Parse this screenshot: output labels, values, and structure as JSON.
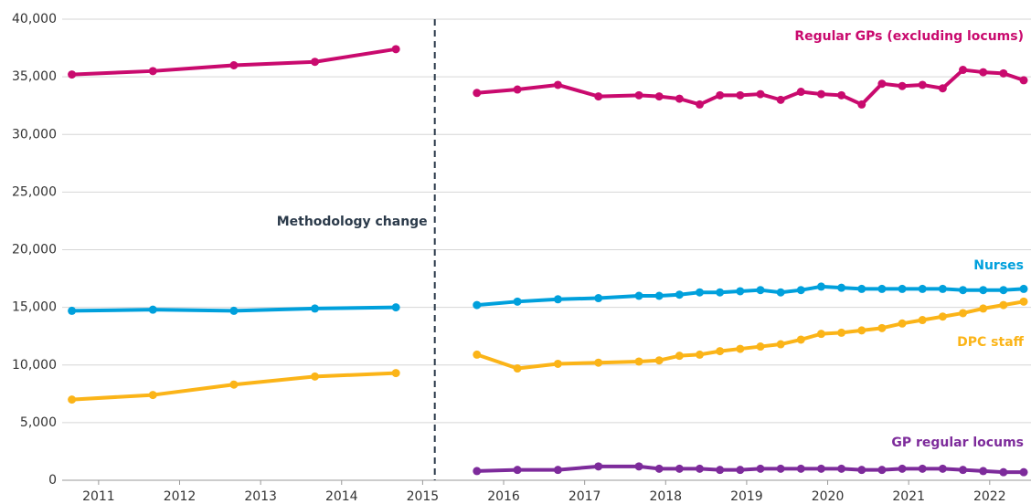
{
  "chart_data": {
    "type": "line",
    "x": [
      2010.67,
      2011.67,
      2012.67,
      2013.67,
      2014.67,
      2015.15,
      2015.67,
      2016.17,
      2016.67,
      2017.17,
      2017.67,
      2017.92,
      2018.17,
      2018.42,
      2018.67,
      2018.92,
      2019.17,
      2019.42,
      2019.67,
      2019.92,
      2020.17,
      2020.42,
      2020.67,
      2020.92,
      2021.17,
      2021.42,
      2021.67,
      2021.92,
      2022.17,
      2022.42
    ],
    "series": [
      {
        "name": "Regular GPs (excluding locums)",
        "color": "#c90a6e",
        "values": [
          35200,
          35500,
          36000,
          36300,
          37400,
          null,
          33600,
          33900,
          34300,
          33300,
          33400,
          33300,
          33100,
          32600,
          33400,
          33400,
          33500,
          33000,
          33700,
          33500,
          33400,
          32600,
          34400,
          34200,
          34300,
          34000,
          35600,
          35400,
          35300,
          34700
        ]
      },
      {
        "name": "Nurses",
        "color": "#00a0dc",
        "values": [
          14700,
          14800,
          14700,
          14900,
          15000,
          null,
          15200,
          15500,
          15700,
          15800,
          16000,
          16000,
          16100,
          16300,
          16300,
          16400,
          16500,
          16300,
          16500,
          16800,
          16700,
          16600,
          16600,
          16600,
          16600,
          16600,
          16500,
          16500,
          16500,
          16600
        ]
      },
      {
        "name": "DPC staff",
        "color": "#fbb418",
        "values": [
          7000,
          7400,
          8300,
          9000,
          9300,
          null,
          10900,
          9700,
          10100,
          10200,
          10300,
          10400,
          10800,
          10900,
          11200,
          11400,
          11600,
          11800,
          12200,
          12700,
          12800,
          13000,
          13200,
          13600,
          13900,
          14200,
          14500,
          14900,
          15200,
          15500
        ]
      },
      {
        "name": "GP regular locums",
        "color": "#7d2b9b",
        "values": [
          null,
          null,
          null,
          null,
          null,
          null,
          800,
          900,
          900,
          1200,
          1200,
          1000,
          1000,
          1000,
          900,
          900,
          1000,
          1000,
          1000,
          1000,
          1000,
          900,
          900,
          1000,
          1000,
          1000,
          900,
          800,
          700,
          700
        ]
      }
    ],
    "annotations": [
      {
        "text": "Methodology change",
        "x": 2015.15
      }
    ],
    "xlim": [
      2010.55,
      2022.51
    ],
    "xticks": [
      2011,
      2012,
      2013,
      2014,
      2015,
      2016,
      2017,
      2018,
      2019,
      2020,
      2021,
      2022
    ],
    "ylim": [
      0,
      40000
    ],
    "yticks": [
      0,
      {
        "value": 5000,
        "label": "5,000"
      },
      {
        "value": 10000,
        "label": "10,000"
      },
      {
        "value": 15000,
        "label": "15,000"
      },
      {
        "value": 20000,
        "label": "20,000"
      },
      {
        "value": 25000,
        "label": "25,000"
      },
      {
        "value": 30000,
        "label": "30,000"
      },
      {
        "value": 35000,
        "label": "35,000"
      },
      {
        "value": 40000,
        "label": "40,000"
      }
    ],
    "grid": true
  }
}
